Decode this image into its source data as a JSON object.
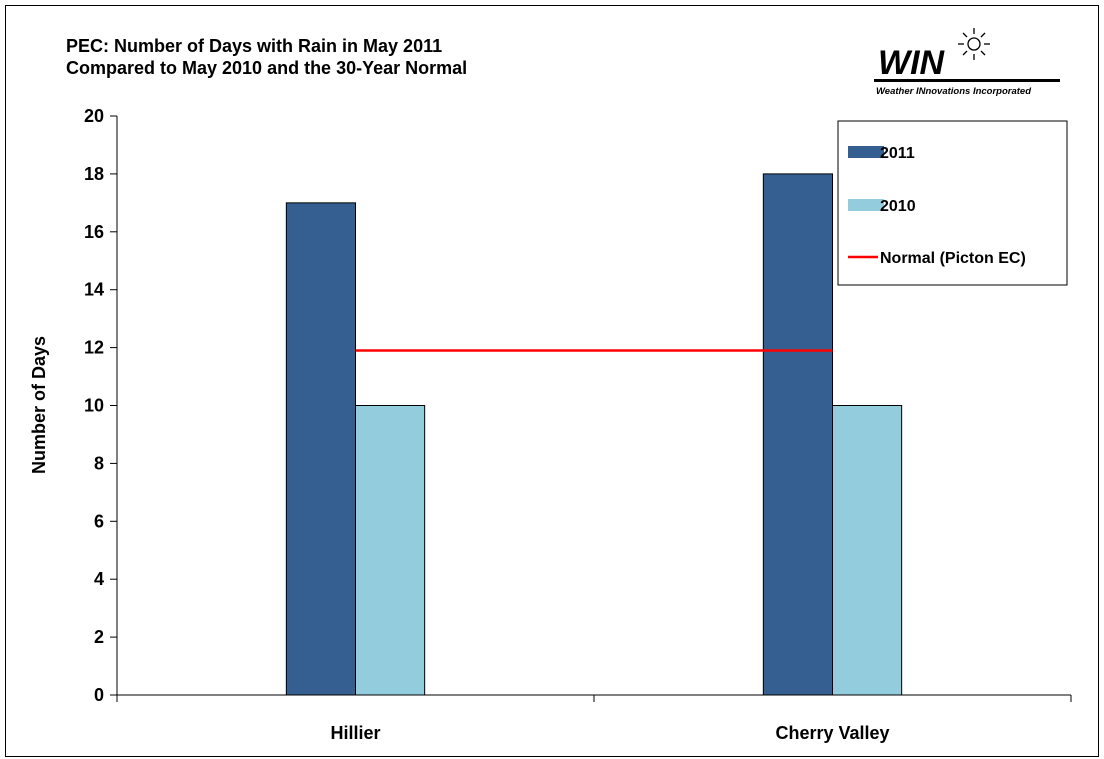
{
  "title_lines": [
    "PEC: Number of Days with Rain in May 2011",
    "Compared to May 2010 and the 30-Year Normal"
  ],
  "logo": {
    "wordmark": "WIN",
    "tagline": "Weather INnovations Incorporated",
    "icon": "sun-icon",
    "color": "#000000"
  },
  "chart_data": {
    "type": "bar",
    "title": "PEC: Number of Days with Rain in May 2011 Compared to May 2010 and the 30-Year Normal",
    "categories": [
      "Hillier",
      "Cherry Valley"
    ],
    "series": [
      {
        "name": "2011",
        "values": [
          17,
          18
        ],
        "color": "#355F91"
      },
      {
        "name": "2010",
        "values": [
          10,
          10
        ],
        "color": "#93CDDD"
      }
    ],
    "reference_line": {
      "name": "Normal (Picton EC)",
      "value": 11.9,
      "color": "#FF0000"
    },
    "xlabel": "",
    "ylabel": "Number of Days",
    "ylim": [
      0,
      20
    ],
    "yticks": [
      0,
      2,
      4,
      6,
      8,
      10,
      12,
      14,
      16,
      18,
      20
    ],
    "grid": false,
    "legend_position": "top-right"
  }
}
